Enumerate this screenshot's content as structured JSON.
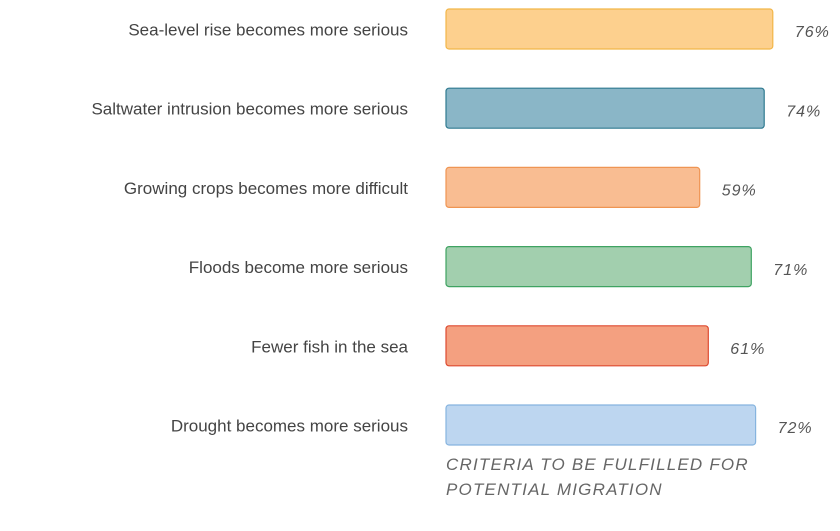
{
  "chart_data": {
    "type": "bar",
    "orientation": "horizontal",
    "categories": [
      "Sea-level rise becomes more serious",
      "Saltwater intrusion becomes more serious",
      "Growing crops becomes more difficult",
      "Floods become more serious",
      "Fewer fish in the sea",
      "Drought becomes more serious"
    ],
    "values": [
      76,
      74,
      59,
      71,
      61,
      72
    ],
    "value_labels": [
      "76%",
      "74%",
      "59%",
      "71%",
      "61%",
      "72%"
    ],
    "colors": [
      "#fdd08e",
      "#8ab6c7",
      "#f9bd92",
      "#a2cfae",
      "#f4a080",
      "#bdd6f0"
    ],
    "edge_colors": [
      "#f2b649",
      "#2f7a90",
      "#ef9553",
      "#3fa362",
      "#dd4a30",
      "#86b4df"
    ],
    "xlabel": "CRITERIA TO BE FULFILLED FOR POTENTIAL MIGRATION"
  }
}
